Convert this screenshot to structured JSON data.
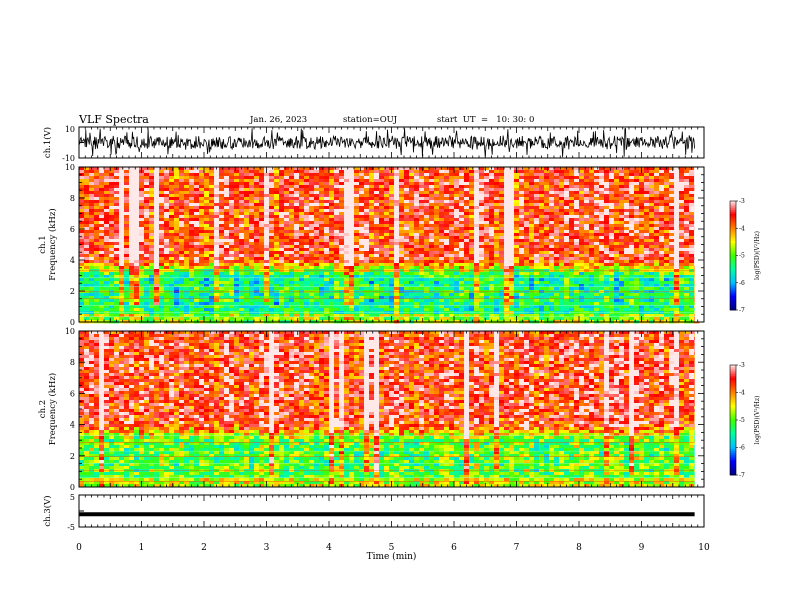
{
  "header": {
    "title": "VLF Spectra",
    "date": "Jan. 26, 2023",
    "station": "station=OUJ",
    "start": "start  UT  =   10: 30: 0"
  },
  "chart_data": [
    {
      "type": "line",
      "panel": "ch1-waveform",
      "ylabel": "ch.1(V)",
      "ylim": [
        -10,
        10
      ],
      "y_ticklabels": [
        "10",
        "-10"
      ],
      "x_range_min": [
        0,
        10
      ],
      "signal_range_approx": [
        -5,
        5
      ],
      "color": "#000000"
    },
    {
      "type": "heatmap",
      "panel": "ch1-spectrogram",
      "ylabel_lines": [
        "ch.1",
        "Frequency  (kHz)"
      ],
      "ylim": [
        0,
        10
      ],
      "y_ticks": [
        0,
        2,
        4,
        6,
        8,
        10
      ],
      "x_range_min": [
        0,
        9.85
      ],
      "colorbar": {
        "label": "log(PSD)(V²/Hz)",
        "range": [
          -7,
          -3
        ],
        "ticks": [
          -7,
          -6,
          -5,
          -4,
          -3
        ],
        "ticklabels": [
          "-7",
          "-6",
          "-5",
          "-4",
          "-3"
        ],
        "colormap": [
          "#000080",
          "#0000ff",
          "#00c0ff",
          "#00ffa0",
          "#40ff00",
          "#ffff00",
          "#ff8000",
          "#ff0000",
          "#ffe8e8"
        ]
      },
      "description_levels": {
        "above_4kHz": -3.6,
        "1_to_4kHz": -5.4,
        "below_0.5kHz": -4.8
      }
    },
    {
      "type": "heatmap",
      "panel": "ch2-spectrogram",
      "ylabel_lines": [
        "ch.2",
        "Frequency  (kHz)"
      ],
      "ylim": [
        0,
        10
      ],
      "y_ticks": [
        0,
        2,
        4,
        6,
        8,
        10
      ],
      "x_range_min": [
        0,
        9.85
      ],
      "colorbar": {
        "label": "log(PSD)(V²/Hz)",
        "range": [
          -7,
          -3
        ],
        "ticks": [
          -7,
          -6,
          -5,
          -4,
          -3
        ],
        "ticklabels": [
          "-7",
          "-6",
          "-5",
          "-4",
          "-3"
        ],
        "colormap": [
          "#000080",
          "#0000ff",
          "#00c0ff",
          "#00ffa0",
          "#40ff00",
          "#ffff00",
          "#ff8000",
          "#ff0000",
          "#ffe8e8"
        ]
      },
      "description_levels": {
        "above_4kHz": -3.5,
        "1_to_4kHz": -5.0,
        "below_0.5kHz": -4.6
      }
    },
    {
      "type": "line",
      "panel": "ch3-waveform",
      "ylabel": "ch.3(V)",
      "ylim": [
        -5,
        5
      ],
      "y_ticklabels": [
        "5",
        "-5"
      ],
      "constant_value": -1,
      "x_range_min": [
        0,
        9.85
      ],
      "color": "#000000"
    }
  ],
  "x_axis": {
    "label": "Time  (min)",
    "ticks": [
      0,
      1,
      2,
      3,
      4,
      5,
      6,
      7,
      8,
      9,
      10
    ],
    "ticklabels": [
      "0",
      "1",
      "2",
      "3",
      "4",
      "5",
      "6",
      "7",
      "8",
      "9",
      "10"
    ],
    "range": [
      0,
      10
    ]
  }
}
